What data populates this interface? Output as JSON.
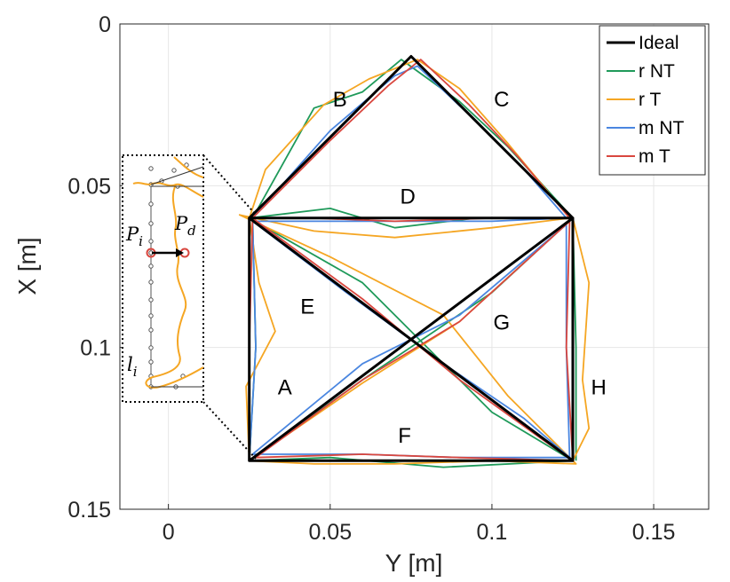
{
  "chart_data": {
    "type": "line",
    "xlabel": "Y [m]",
    "ylabel": "X [m]",
    "xlim": [
      -0.015,
      0.167
    ],
    "ylim": [
      0.0,
      0.15
    ],
    "y_reversed": true,
    "grid": true,
    "x_ticks": [
      0,
      0.05,
      0.1,
      0.15
    ],
    "x_tick_labels": [
      "0",
      "0.05",
      "0.1",
      "0.15"
    ],
    "y_ticks": [
      0,
      0.05,
      0.1,
      0.15
    ],
    "y_tick_labels": [
      "0",
      "0.05",
      "0.1",
      "0.15"
    ],
    "legend_position": "top-right",
    "colors": {
      "ideal": "#000000",
      "r_nt": "#1f9a5a",
      "r_t": "#f5a623",
      "m_nt": "#4a86e0",
      "m_t": "#d9473f"
    },
    "series": [
      {
        "name": "Ideal",
        "color": "#000000",
        "points": [
          [
            0.025,
            0.135
          ],
          [
            0.025,
            0.06
          ],
          [
            0.125,
            0.06
          ],
          [
            0.125,
            0.135
          ],
          [
            0.025,
            0.135
          ],
          [
            0.125,
            0.06
          ],
          [
            0.075,
            0.01
          ],
          [
            0.025,
            0.06
          ],
          [
            0.125,
            0.135
          ]
        ]
      },
      {
        "name": "r NT",
        "color": "#1f9a5a",
        "points": [
          [
            0.025,
            0.135
          ],
          [
            0.027,
            0.1
          ],
          [
            0.026,
            0.06
          ],
          [
            0.045,
            0.026
          ],
          [
            0.06,
            0.021
          ],
          [
            0.072,
            0.011
          ],
          [
            0.09,
            0.024
          ],
          [
            0.105,
            0.038
          ],
          [
            0.125,
            0.06
          ],
          [
            0.095,
            0.06
          ],
          [
            0.07,
            0.063
          ],
          [
            0.05,
            0.057
          ],
          [
            0.025,
            0.06
          ],
          [
            0.06,
            0.08
          ],
          [
            0.1,
            0.12
          ],
          [
            0.125,
            0.135
          ],
          [
            0.085,
            0.137
          ],
          [
            0.05,
            0.134
          ],
          [
            0.025,
            0.135
          ],
          [
            0.06,
            0.11
          ],
          [
            0.1,
            0.083
          ],
          [
            0.125,
            0.06
          ],
          [
            0.126,
            0.1
          ],
          [
            0.126,
            0.135
          ]
        ]
      },
      {
        "name": "r T",
        "color": "#f5a623",
        "points": [
          [
            0.025,
            0.135
          ],
          [
            0.024,
            0.112
          ],
          [
            0.033,
            0.095
          ],
          [
            0.028,
            0.08
          ],
          [
            0.025,
            0.06
          ],
          [
            0.03,
            0.045
          ],
          [
            0.048,
            0.025
          ],
          [
            0.062,
            0.017
          ],
          [
            0.077,
            0.011
          ],
          [
            0.09,
            0.02
          ],
          [
            0.105,
            0.037
          ],
          [
            0.124,
            0.06
          ],
          [
            0.1,
            0.063
          ],
          [
            0.07,
            0.066
          ],
          [
            0.045,
            0.064
          ],
          [
            0.022,
            0.059
          ],
          [
            0.05,
            0.072
          ],
          [
            0.085,
            0.09
          ],
          [
            0.105,
            0.115
          ],
          [
            0.126,
            0.136
          ],
          [
            0.1,
            0.135
          ],
          [
            0.07,
            0.136
          ],
          [
            0.045,
            0.136
          ],
          [
            0.025,
            0.135
          ],
          [
            0.06,
            0.111
          ],
          [
            0.09,
            0.092
          ],
          [
            0.125,
            0.06
          ],
          [
            0.13,
            0.08
          ],
          [
            0.128,
            0.11
          ],
          [
            0.13,
            0.125
          ],
          [
            0.125,
            0.135
          ]
        ]
      },
      {
        "name": "m NT",
        "color": "#4a86e0",
        "points": [
          [
            0.025,
            0.135
          ],
          [
            0.027,
            0.1
          ],
          [
            0.026,
            0.06
          ],
          [
            0.05,
            0.033
          ],
          [
            0.07,
            0.016
          ],
          [
            0.077,
            0.013
          ],
          [
            0.095,
            0.03
          ],
          [
            0.11,
            0.045
          ],
          [
            0.123,
            0.06
          ],
          [
            0.1,
            0.061
          ],
          [
            0.07,
            0.061
          ],
          [
            0.045,
            0.061
          ],
          [
            0.026,
            0.061
          ],
          [
            0.055,
            0.083
          ],
          [
            0.085,
            0.105
          ],
          [
            0.11,
            0.122
          ],
          [
            0.124,
            0.134
          ],
          [
            0.09,
            0.134
          ],
          [
            0.06,
            0.133
          ],
          [
            0.026,
            0.133
          ],
          [
            0.06,
            0.105
          ],
          [
            0.09,
            0.09
          ],
          [
            0.123,
            0.062
          ],
          [
            0.123,
            0.1
          ],
          [
            0.124,
            0.134
          ]
        ]
      },
      {
        "name": "m T",
        "color": "#d9473f",
        "points": [
          [
            0.025,
            0.135
          ],
          [
            0.025,
            0.1
          ],
          [
            0.026,
            0.06
          ],
          [
            0.05,
            0.036
          ],
          [
            0.068,
            0.019
          ],
          [
            0.078,
            0.011
          ],
          [
            0.093,
            0.025
          ],
          [
            0.108,
            0.041
          ],
          [
            0.124,
            0.06
          ],
          [
            0.1,
            0.06
          ],
          [
            0.07,
            0.061
          ],
          [
            0.045,
            0.06
          ],
          [
            0.026,
            0.06
          ],
          [
            0.06,
            0.085
          ],
          [
            0.09,
            0.11
          ],
          [
            0.115,
            0.128
          ],
          [
            0.125,
            0.135
          ],
          [
            0.09,
            0.134
          ],
          [
            0.06,
            0.133
          ],
          [
            0.027,
            0.134
          ],
          [
            0.06,
            0.11
          ],
          [
            0.09,
            0.092
          ],
          [
            0.124,
            0.061
          ],
          [
            0.123,
            0.1
          ],
          [
            0.125,
            0.135
          ]
        ]
      }
    ],
    "segment_labels": [
      {
        "text": "A",
        "x": 0.036,
        "y": 0.112
      },
      {
        "text": "B",
        "x": 0.053,
        "y": 0.023
      },
      {
        "text": "C",
        "x": 0.103,
        "y": 0.023
      },
      {
        "text": "D",
        "x": 0.074,
        "y": 0.053
      },
      {
        "text": "E",
        "x": 0.043,
        "y": 0.087
      },
      {
        "text": "F",
        "x": 0.073,
        "y": 0.127
      },
      {
        "text": "G",
        "x": 0.103,
        "y": 0.092
      },
      {
        "text": "H",
        "x": 0.133,
        "y": 0.112
      }
    ],
    "inset": {
      "labels": {
        "p_i_main": "P",
        "p_i_sub": "i",
        "p_d_main": "P",
        "p_d_sub": "d",
        "l_i_main": "l",
        "l_i_sub": "i"
      }
    }
  }
}
